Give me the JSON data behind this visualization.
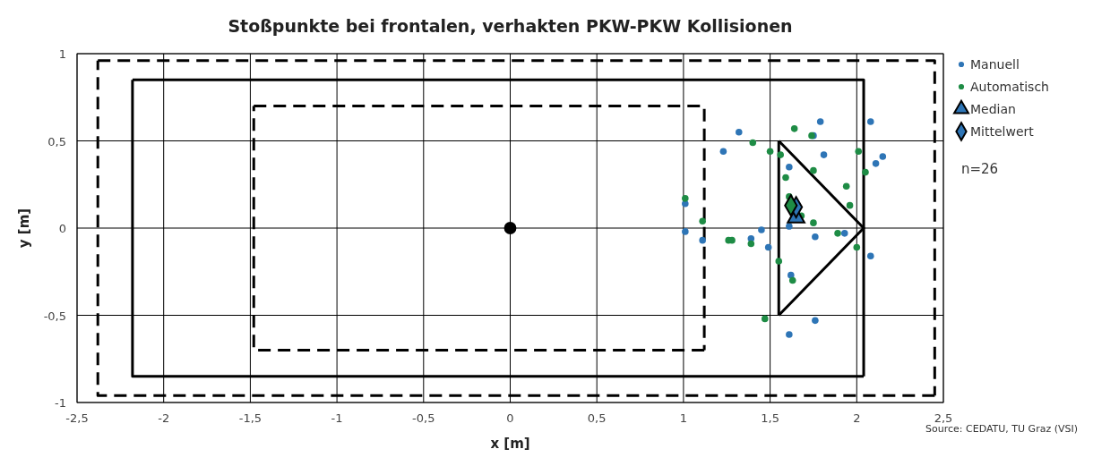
{
  "chart_data": {
    "type": "scatter",
    "title": "Stoßpunkte bei frontalen, verhakten PKW-PKW Kollisionen",
    "xlabel": "x [m]",
    "ylabel": "y [m]",
    "xlim": [
      -2.5,
      2.5
    ],
    "ylim": [
      -1,
      1
    ],
    "xticks": [
      {
        "value": -2.5,
        "label": "-2,5"
      },
      -2,
      {
        "value": -1.5,
        "label": "-1,5"
      },
      -1,
      {
        "value": -0.5,
        "label": "-0,5"
      },
      0,
      {
        "value": 0.5,
        "label": "0,5"
      },
      1,
      {
        "value": 1.5,
        "label": "1,5"
      },
      2,
      {
        "value": 2.5,
        "label": "2,5"
      }
    ],
    "yticks": [
      -1,
      {
        "value": -0.5,
        "label": "-0,5"
      },
      0,
      {
        "value": 0.5,
        "label": "0,5"
      },
      1
    ],
    "grid": true,
    "legend": "right",
    "annotations": [
      "n=26",
      "Source: CEDATU, TU Graz (VSI)"
    ],
    "series": [
      {
        "type": "line",
        "color": "#000000",
        "line_style": "dashed",
        "marker": "none",
        "x": [
          -2.38,
          2.45,
          2.45
        ],
        "values": [
          0.96,
          0.96,
          -0.96
        ]
      },
      {
        "type": "line",
        "color": "#000000",
        "line_style": "dashed",
        "marker": "none",
        "x": [
          2.45,
          -2.38,
          -2.38
        ],
        "values": [
          -0.96,
          -0.96,
          0.96
        ]
      },
      {
        "type": "line",
        "color": "#000000",
        "line_style": "solid",
        "marker": "none",
        "x": [
          -2.18,
          2.04,
          2.04
        ],
        "values": [
          0.85,
          0.85,
          -0.85
        ]
      },
      {
        "type": "line",
        "color": "#000000",
        "line_style": "solid",
        "marker": "none",
        "x": [
          2.04,
          -2.18,
          -2.18
        ],
        "values": [
          -0.85,
          -0.85,
          0.85
        ]
      },
      {
        "type": "line",
        "color": "#000000",
        "line_style": "dashed",
        "marker": "none",
        "x": [
          -1.48,
          1.12,
          1.12
        ],
        "values": [
          0.7,
          0.7,
          -0.7
        ]
      },
      {
        "type": "line",
        "color": "#000000",
        "line_style": "dashed",
        "marker": "none",
        "x": [
          1.12,
          -1.48,
          -1.48
        ],
        "values": [
          -0.7,
          -0.7,
          0.7
        ]
      },
      {
        "type": "line",
        "color": "#000000",
        "line_style": "solid",
        "marker": "none",
        "x": [
          1.55,
          2.04,
          1.55
        ],
        "values": [
          0.5,
          0,
          -0.5
        ]
      },
      {
        "type": "line",
        "color": "#000000",
        "line_style": "solid",
        "marker": "none",
        "x": [
          1.55,
          1.55
        ],
        "values": [
          -0.5,
          0.5
        ]
      },
      {
        "color": "#000000",
        "marker": "circle",
        "x": [
          0
        ],
        "values": [
          0
        ]
      },
      {
        "name": "Manuell",
        "color": "#2e75b6",
        "marker": "circle",
        "x": [
          1.79,
          2.08,
          1.32,
          1.75,
          1.23,
          1.81,
          2.15,
          2.11,
          1.61,
          1.01,
          1.61,
          1.01,
          1.45,
          1.11,
          1.39,
          1.49,
          1.76,
          1.93,
          2.08,
          1.62,
          1.76,
          1.61
        ],
        "values": [
          0.61,
          0.61,
          0.55,
          0.53,
          0.44,
          0.42,
          0.41,
          0.37,
          0.35,
          0.14,
          0.01,
          -0.02,
          -0.01,
          -0.07,
          -0.06,
          -0.11,
          -0.05,
          -0.03,
          -0.16,
          -0.27,
          -0.53,
          -0.61
        ]
      },
      {
        "name": "Automatisch",
        "color": "#1e8c45",
        "marker": "circle",
        "x": [
          1.64,
          1.74,
          1.4,
          1.5,
          1.56,
          2.01,
          2.05,
          1.75,
          1.59,
          1.94,
          1.96,
          1.01,
          1.11,
          1.61,
          1.68,
          1.75,
          1.26,
          1.28,
          1.39,
          1.89,
          2.0,
          1.55,
          1.63,
          1.47
        ],
        "values": [
          0.57,
          0.53,
          0.49,
          0.44,
          0.42,
          0.44,
          0.32,
          0.33,
          0.29,
          0.24,
          0.13,
          0.17,
          0.04,
          0.18,
          0.07,
          0.03,
          -0.07,
          -0.07,
          -0.09,
          -0.03,
          -0.11,
          -0.19,
          -0.3,
          -0.52
        ]
      },
      {
        "name": "Median",
        "color": "#000000",
        "colors": [
          "#2e75b6"
        ],
        "marker": "triangle",
        "x": [
          1.65
        ],
        "values": [
          0.06
        ]
      },
      {
        "name": "Mittelwert",
        "color": "#000000",
        "colors": [
          "#2e75b6",
          "#1e8c45"
        ],
        "marker": "diamond",
        "x": [
          1.65,
          1.62
        ],
        "values": [
          0.12,
          0.13
        ]
      }
    ]
  }
}
